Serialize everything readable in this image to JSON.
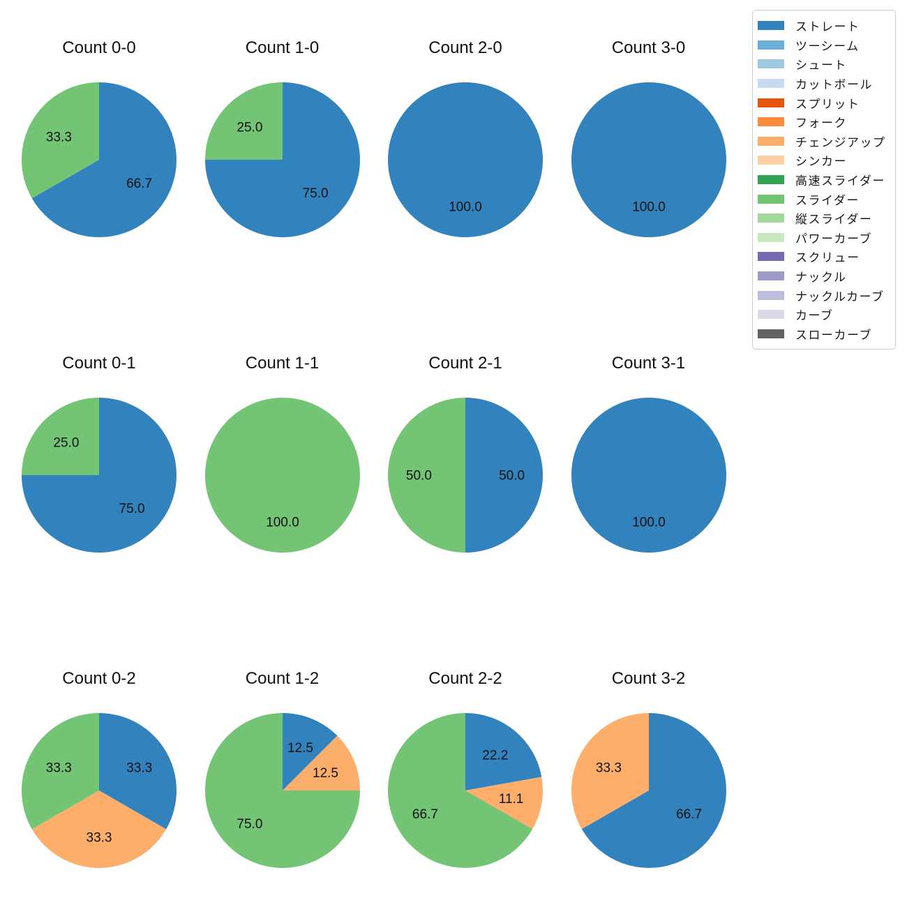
{
  "figure": {
    "background": "#ffffff",
    "text_color": "#111111"
  },
  "legend": {
    "position": "top-right",
    "items": [
      {
        "label": "ストレート",
        "color": "#3182bd"
      },
      {
        "label": "ツーシーム",
        "color": "#6baed6"
      },
      {
        "label": "シュート",
        "color": "#9ecae1"
      },
      {
        "label": "カットボール",
        "color": "#c6dbef"
      },
      {
        "label": "スプリット",
        "color": "#e6550d"
      },
      {
        "label": "フォーク",
        "color": "#fd8d3c"
      },
      {
        "label": "チェンジアップ",
        "color": "#fdae6b"
      },
      {
        "label": "シンカー",
        "color": "#fdd0a2"
      },
      {
        "label": "高速スライダー",
        "color": "#31a354"
      },
      {
        "label": "スライダー",
        "color": "#74c476"
      },
      {
        "label": "縦スライダー",
        "color": "#a1d99b"
      },
      {
        "label": "パワーカーブ",
        "color": "#c7e9c0"
      },
      {
        "label": "スクリュー",
        "color": "#756bb1"
      },
      {
        "label": "ナックル",
        "color": "#9e9ac8"
      },
      {
        "label": "ナックルカーブ",
        "color": "#bcbddc"
      },
      {
        "label": "カーブ",
        "color": "#dadaeb"
      },
      {
        "label": "スローカーブ",
        "color": "#636363"
      }
    ]
  },
  "chart_data": [
    {
      "type": "pie",
      "title": "Count 0-0",
      "start_angle": 90,
      "direction": "clockwise",
      "label_radius": 0.6,
      "slices": [
        {
          "label": "ストレート",
          "value": 66.7,
          "color": "#3182bd"
        },
        {
          "label": "スライダー",
          "value": 33.3,
          "color": "#74c476"
        }
      ]
    },
    {
      "type": "pie",
      "title": "Count 1-0",
      "start_angle": 90,
      "direction": "clockwise",
      "label_radius": 0.6,
      "slices": [
        {
          "label": "ストレート",
          "value": 75.0,
          "color": "#3182bd"
        },
        {
          "label": "スライダー",
          "value": 25.0,
          "color": "#74c476"
        }
      ]
    },
    {
      "type": "pie",
      "title": "Count 2-0",
      "start_angle": 90,
      "direction": "clockwise",
      "label_radius": 0.6,
      "slices": [
        {
          "label": "ストレート",
          "value": 100.0,
          "color": "#3182bd"
        }
      ]
    },
    {
      "type": "pie",
      "title": "Count 3-0",
      "start_angle": 90,
      "direction": "clockwise",
      "label_radius": 0.6,
      "slices": [
        {
          "label": "ストレート",
          "value": 100.0,
          "color": "#3182bd"
        }
      ]
    },
    {
      "type": "pie",
      "title": "Count 0-1",
      "start_angle": 90,
      "direction": "clockwise",
      "label_radius": 0.6,
      "slices": [
        {
          "label": "ストレート",
          "value": 75.0,
          "color": "#3182bd"
        },
        {
          "label": "スライダー",
          "value": 25.0,
          "color": "#74c476"
        }
      ]
    },
    {
      "type": "pie",
      "title": "Count 1-1",
      "start_angle": 90,
      "direction": "clockwise",
      "label_radius": 0.6,
      "slices": [
        {
          "label": "スライダー",
          "value": 100.0,
          "color": "#74c476"
        }
      ]
    },
    {
      "type": "pie",
      "title": "Count 2-1",
      "start_angle": 90,
      "direction": "clockwise",
      "label_radius": 0.6,
      "slices": [
        {
          "label": "ストレート",
          "value": 50.0,
          "color": "#3182bd"
        },
        {
          "label": "スライダー",
          "value": 50.0,
          "color": "#74c476"
        }
      ]
    },
    {
      "type": "pie",
      "title": "Count 3-1",
      "start_angle": 90,
      "direction": "clockwise",
      "label_radius": 0.6,
      "slices": [
        {
          "label": "ストレート",
          "value": 100.0,
          "color": "#3182bd"
        }
      ]
    },
    {
      "type": "pie",
      "title": "Count 0-2",
      "start_angle": 90,
      "direction": "clockwise",
      "label_radius": 0.6,
      "slices": [
        {
          "label": "ストレート",
          "value": 33.3,
          "color": "#3182bd"
        },
        {
          "label": "チェンジアップ",
          "value": 33.3,
          "color": "#fdae6b"
        },
        {
          "label": "スライダー",
          "value": 33.3,
          "color": "#74c476"
        }
      ]
    },
    {
      "type": "pie",
      "title": "Count 1-2",
      "start_angle": 90,
      "direction": "clockwise",
      "label_radius": 0.6,
      "slices": [
        {
          "label": "ストレート",
          "value": 12.5,
          "color": "#3182bd"
        },
        {
          "label": "チェンジアップ",
          "value": 12.5,
          "color": "#fdae6b"
        },
        {
          "label": "スライダー",
          "value": 75.0,
          "color": "#74c476"
        }
      ]
    },
    {
      "type": "pie",
      "title": "Count 2-2",
      "start_angle": 90,
      "direction": "clockwise",
      "label_radius": 0.6,
      "slices": [
        {
          "label": "ストレート",
          "value": 22.2,
          "color": "#3182bd"
        },
        {
          "label": "チェンジアップ",
          "value": 11.1,
          "color": "#fdae6b"
        },
        {
          "label": "スライダー",
          "value": 66.7,
          "color": "#74c476"
        }
      ]
    },
    {
      "type": "pie",
      "title": "Count 3-2",
      "start_angle": 90,
      "direction": "clockwise",
      "label_radius": 0.6,
      "slices": [
        {
          "label": "ストレート",
          "value": 66.7,
          "color": "#3182bd"
        },
        {
          "label": "チェンジアップ",
          "value": 33.3,
          "color": "#fdae6b"
        }
      ]
    }
  ]
}
